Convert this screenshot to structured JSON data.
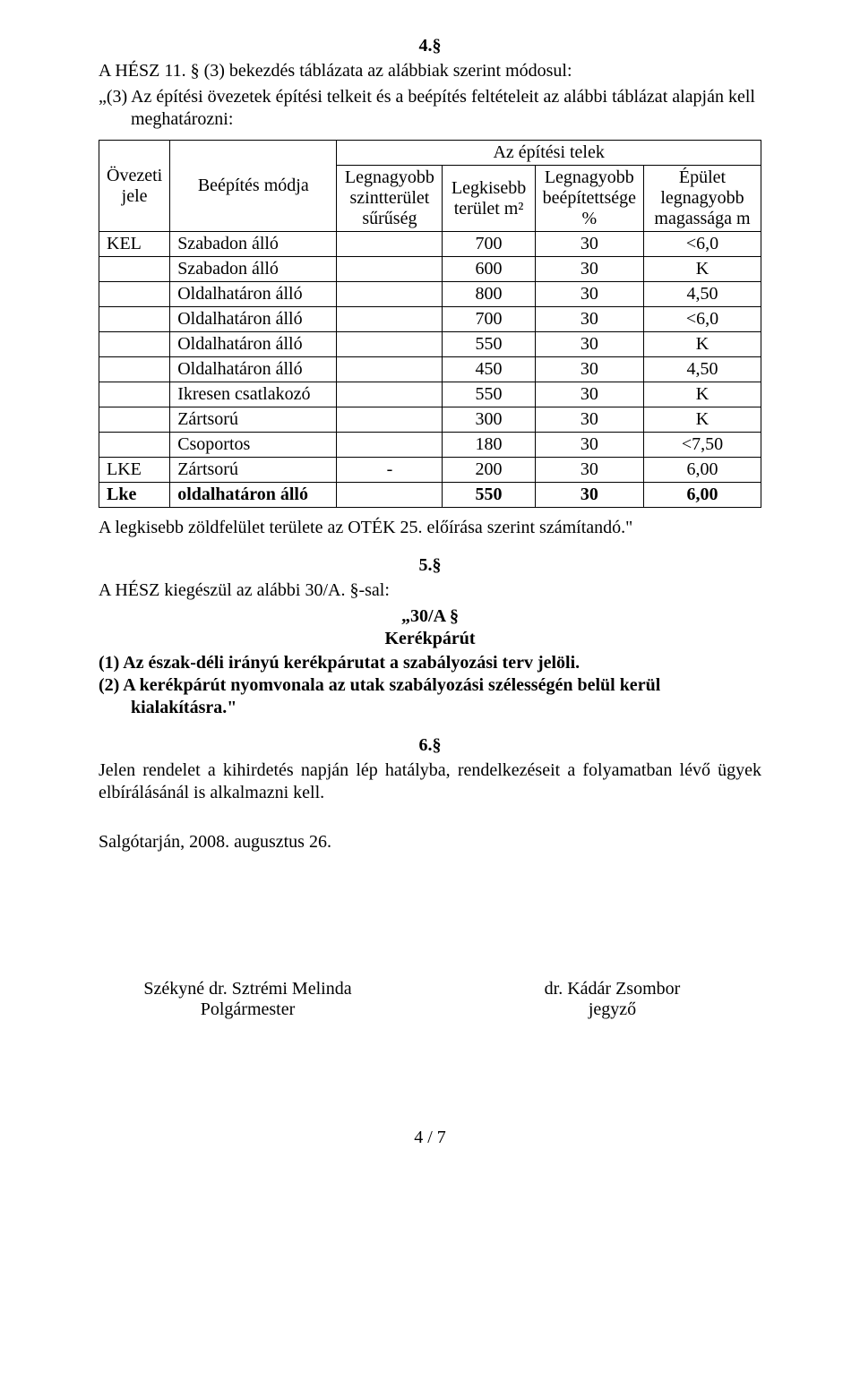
{
  "section4": {
    "num": "4.§",
    "line1": "A HÉSZ 11. § (3) bekezdés táblázata az alábbiak szerint módosul:",
    "line2": "„(3) Az építési övezetek építési telkeit és a beépítés feltételeit az alábbi táblázat alapján kell meghatározni:"
  },
  "table": {
    "header_top": "Az építési telek",
    "headers": {
      "c1": "Övezeti jele",
      "c2": "Beépítés módja",
      "c3": "Legnagyobb szintterület sűrűség",
      "c4": "Legkisebb terület m²",
      "c5": "Legnagyobb beépítettsége %",
      "c6": "Épület legnagyobb magassága m"
    },
    "rows": [
      {
        "c1": "KEL",
        "c2": "Szabadon álló",
        "c3": "",
        "c4": "700",
        "c5": "30",
        "c6": "<6,0",
        "bold": false
      },
      {
        "c1": "",
        "c2": "Szabadon álló",
        "c3": "",
        "c4": "600",
        "c5": "30",
        "c6": "K",
        "bold": false
      },
      {
        "c1": "",
        "c2": "Oldalhatáron álló",
        "c3": "",
        "c4": "800",
        "c5": "30",
        "c6": "4,50",
        "bold": false
      },
      {
        "c1": "",
        "c2": "Oldalhatáron álló",
        "c3": "",
        "c4": "700",
        "c5": "30",
        "c6": "<6,0",
        "bold": false
      },
      {
        "c1": "",
        "c2": "Oldalhatáron álló",
        "c3": "",
        "c4": "550",
        "c5": "30",
        "c6": "K",
        "bold": false
      },
      {
        "c1": "",
        "c2": "Oldalhatáron álló",
        "c3": "",
        "c4": "450",
        "c5": "30",
        "c6": "4,50",
        "bold": false
      },
      {
        "c1": "",
        "c2": "Ikresen csatlakozó",
        "c3": "",
        "c4": "550",
        "c5": "30",
        "c6": "K",
        "bold": false
      },
      {
        "c1": "",
        "c2": "Zártsorú",
        "c3": "",
        "c4": "300",
        "c5": "30",
        "c6": "K",
        "bold": false
      },
      {
        "c1": "",
        "c2": "Csoportos",
        "c3": "",
        "c4": "180",
        "c5": "30",
        "c6": "<7,50",
        "bold": false
      },
      {
        "c1": "LKE",
        "c2": "Zártsorú",
        "c3": "-",
        "c4": "200",
        "c5": "30",
        "c6": "6,00",
        "bold": false
      },
      {
        "c1": "Lke",
        "c2": "oldalhatáron álló",
        "c3": "",
        "c4": "550",
        "c5": "30",
        "c6": "6,00",
        "bold": true
      }
    ],
    "footer": "A legkisebb zöldfelület területe az OTÉK 25. előírása szerint számítandó.\""
  },
  "section5": {
    "num": "5.§",
    "line1": "A HÉSZ kiegészül az alábbi 30/A. §-sal:",
    "sub_num": "„30/A §",
    "sub_title": "Kerékpárút",
    "item1_num": "(1)",
    "item1_text": "Az észak-déli irányú kerékpárutat a szabályozási terv jelöli.",
    "item2_num": "(2)",
    "item2_text": "A kerékpárút nyomvonala az utak szabályozási szélességén belül kerül kialakításra.\""
  },
  "section6": {
    "num": "6.§",
    "text": "Jelen rendelet a kihirdetés napján lép hatályba, rendelkezéseit a folyamatban lévő ügyek elbírálásánál is alkalmazni kell."
  },
  "date": "Salgótarján, 2008. augusztus 26.",
  "sig": {
    "left_name": "Székyné dr. Sztrémi Melinda",
    "left_title": "Polgármester",
    "right_name": "dr. Kádár Zsombor",
    "right_title": "jegyző"
  },
  "page_number": "4 / 7"
}
